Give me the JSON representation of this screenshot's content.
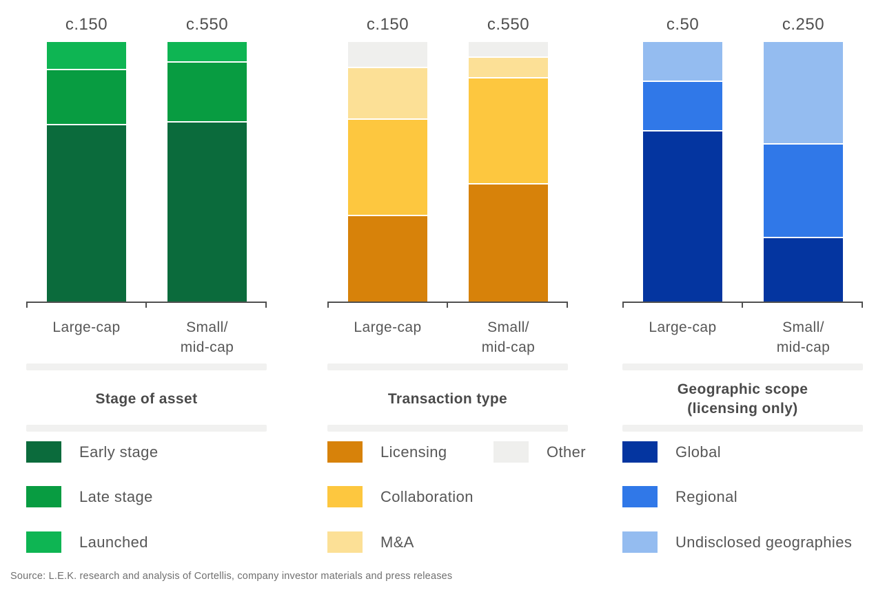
{
  "source_note": "Source: L.E.K. research and analysis of Cortellis, company investor materials and press releases",
  "chart_data": [
    {
      "type": "bar",
      "subtype": "stacked-percent-column",
      "title_line1": "Stage of asset",
      "title_line2": "",
      "totals": [
        "c.150",
        "c.550"
      ],
      "categories": [
        {
          "line1": "Large-cap",
          "line2": ""
        },
        {
          "line1": "Small/",
          "line2": "mid-cap"
        }
      ],
      "value_unit": "approximate share of bar height, %",
      "series": [
        {
          "name": "Early stage",
          "color": "#0B6B3C",
          "values": [
            68,
            69
          ]
        },
        {
          "name": "Late stage",
          "color": "#089C41",
          "values": [
            21,
            23
          ]
        },
        {
          "name": "Launched",
          "color": "#0EB553",
          "values": [
            11,
            8
          ]
        }
      ]
    },
    {
      "type": "bar",
      "subtype": "stacked-percent-column",
      "title_line1": "Transaction type",
      "title_line2": "",
      "totals": [
        "c.150",
        "c.550"
      ],
      "categories": [
        {
          "line1": "Large-cap",
          "line2": ""
        },
        {
          "line1": "Small/",
          "line2": "mid-cap"
        }
      ],
      "value_unit": "approximate share of bar height, %",
      "series": [
        {
          "name": "Licensing",
          "color": "#D7820A",
          "values": [
            33,
            45
          ]
        },
        {
          "name": "Collaboration",
          "color": "#FDC73F",
          "values": [
            37,
            41
          ]
        },
        {
          "name": "M&A",
          "color": "#FCE096",
          "values": [
            20,
            8
          ]
        },
        {
          "name": "Other",
          "color": "#EFEFED",
          "values": [
            10,
            6
          ]
        }
      ]
    },
    {
      "type": "bar",
      "subtype": "stacked-percent-column",
      "title_line1": "Geographic scope",
      "title_line2": "(licensing only)",
      "totals": [
        "c.50",
        "c.250"
      ],
      "categories": [
        {
          "line1": "Large-cap",
          "line2": ""
        },
        {
          "line1": "Small/",
          "line2": "mid-cap"
        }
      ],
      "value_unit": "approximate share of bar height, %",
      "series": [
        {
          "name": "Global",
          "color": "#0435A0",
          "values": [
            65.5,
            24.5
          ]
        },
        {
          "name": "Regional",
          "color": "#3078E8",
          "values": [
            19,
            36
          ]
        },
        {
          "name": "Undisclosed geographies",
          "color": "#94BCF0",
          "values": [
            15.5,
            39.5
          ]
        }
      ]
    }
  ],
  "style": {
    "axis_color": "#4F4F4F",
    "divider_color": "#F1F1F0",
    "segment_gap_color": "#FFFFFF",
    "title_color": "#4A4A4A",
    "label_color": "#575757",
    "source_color": "#6F6F6F"
  }
}
